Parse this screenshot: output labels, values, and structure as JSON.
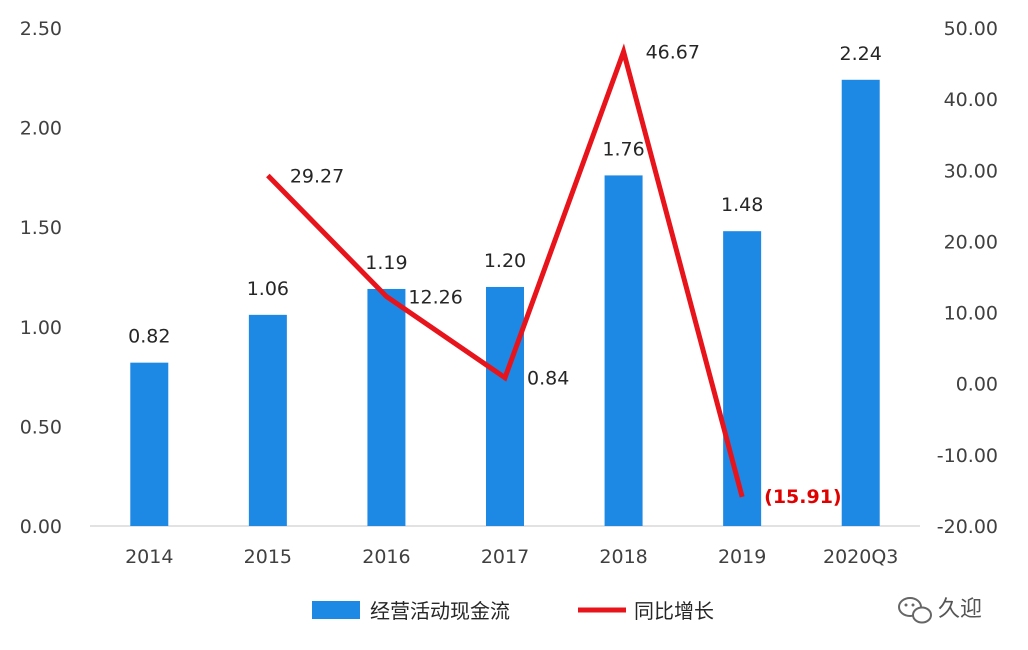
{
  "chart_data": {
    "type": "bar+line",
    "title": "",
    "categories": [
      "2014",
      "2015",
      "2016",
      "2017",
      "2018",
      "2019",
      "2020Q3"
    ],
    "series": [
      {
        "name": "经营活动现金流",
        "type": "bar",
        "axis": "left",
        "color": "#1e88e5",
        "values": [
          0.82,
          1.06,
          1.19,
          1.2,
          1.76,
          1.48,
          2.24
        ],
        "labels": [
          "0.82",
          "1.06",
          "1.19",
          "1.20",
          "1.76",
          "1.48",
          "2.24"
        ]
      },
      {
        "name": "同比增长",
        "type": "line",
        "axis": "right",
        "color": "#e8141b",
        "values": [
          null,
          29.27,
          12.26,
          0.84,
          46.67,
          -15.91,
          null
        ],
        "labels": [
          "",
          "29.27",
          "12.26",
          "0.84",
          "46.67",
          "(15.91)",
          ""
        ]
      }
    ],
    "y_left": {
      "min": 0,
      "max": 2.5,
      "ticks": [
        0,
        0.5,
        1.0,
        1.5,
        2.0,
        2.5
      ],
      "tick_labels": [
        "0.00",
        "0.50",
        "1.00",
        "1.50",
        "2.00",
        "2.50"
      ]
    },
    "y_right": {
      "min": -20,
      "max": 50,
      "ticks": [
        -20,
        -10,
        0,
        10,
        20,
        30,
        40,
        50
      ],
      "tick_labels": [
        "-20.00",
        "-10.00",
        "0.00",
        "10.00",
        "20.00",
        "30.00",
        "40.00",
        "50.00"
      ]
    },
    "grid": false,
    "legend": {
      "position": "bottom-center",
      "entries": [
        "经营活动现金流",
        "同比增长"
      ]
    },
    "negative_label_color": "#e00000"
  },
  "watermark": {
    "text": "久迎",
    "icon": "wechat-icon"
  }
}
